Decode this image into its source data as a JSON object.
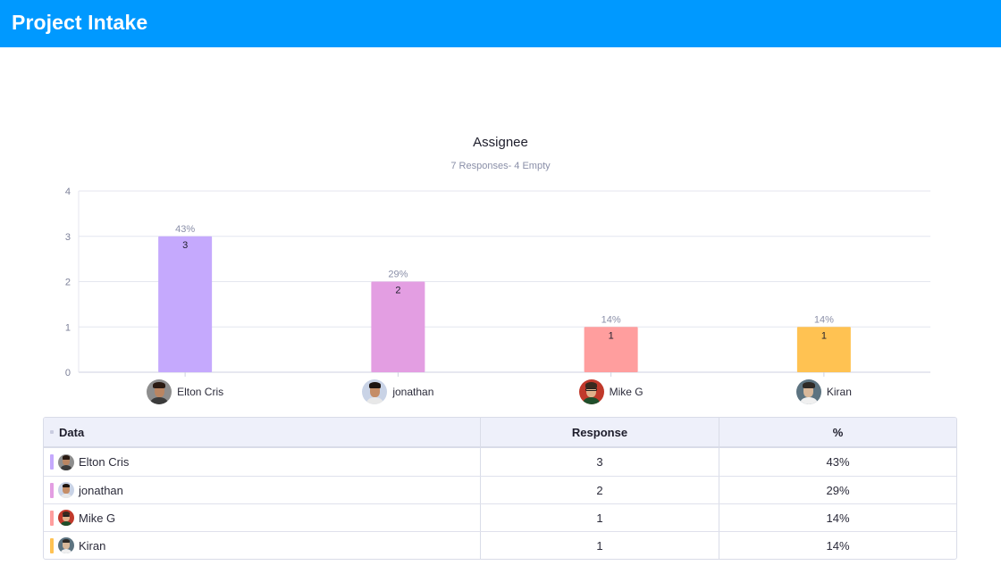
{
  "header": {
    "title": "Project Intake"
  },
  "chart_data": {
    "type": "bar",
    "title": "Assignee",
    "subtitle": "7 Responses- 4 Empty",
    "categories": [
      "Elton Cris",
      "jonathan",
      "Mike G",
      "Kiran"
    ],
    "values": [
      3,
      2,
      1,
      1
    ],
    "percent_labels": [
      "43%",
      "29%",
      "14%",
      "14%"
    ],
    "colors": [
      "#c5a9fd",
      "#e39ee2",
      "#ff9e9e",
      "#ffc252"
    ],
    "ylim": [
      0,
      4
    ],
    "yticks": [
      "0",
      "1",
      "2",
      "3",
      "4"
    ],
    "grid": true,
    "xlabel": "",
    "ylabel": ""
  },
  "avatars": [
    {
      "name": "Elton Cris",
      "bg": "#8d8d8d",
      "skin": "#b98562",
      "hair": "#2a1a12",
      "shirt": "#3b3b3b",
      "glasses": false
    },
    {
      "name": "jonathan",
      "bg": "#c9d3e6",
      "skin": "#c58d66",
      "hair": "#1e1510",
      "shirt": "#e8e8e8",
      "glasses": false
    },
    {
      "name": "Mike G",
      "bg": "#c0392b",
      "skin": "#e0b08a",
      "hair": "#3a2a1e",
      "shirt": "#1f4f2b",
      "glasses": true
    },
    {
      "name": "Kiran",
      "bg": "#5c7380",
      "skin": "#d8b89a",
      "hair": "#2e2a26",
      "shirt": "#f0f0f0",
      "glasses": false
    }
  ],
  "table": {
    "columns": [
      "Data",
      "Response",
      "%"
    ],
    "rows": [
      {
        "label": "Elton Cris",
        "response": "3",
        "percent": "43%"
      },
      {
        "label": "jonathan",
        "response": "2",
        "percent": "29%"
      },
      {
        "label": "Mike G",
        "response": "1",
        "percent": "14%"
      },
      {
        "label": "Kiran",
        "response": "1",
        "percent": "14%"
      }
    ]
  }
}
